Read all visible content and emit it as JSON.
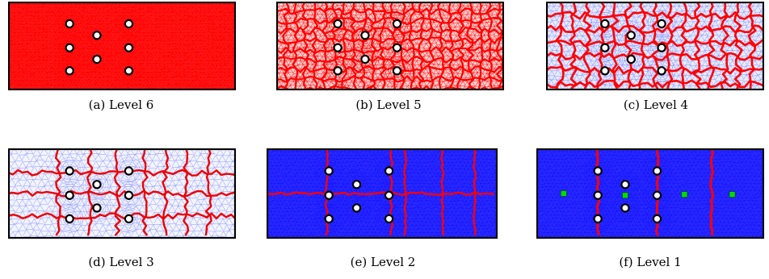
{
  "figure": {
    "panels": [
      {
        "id": "a",
        "caption": "(a)  Level 6",
        "mesh_color": "#ff0000",
        "partition_color": "#ff0000",
        "background": "#ff1a1a"
      },
      {
        "id": "b",
        "caption": "(b)  Level 5",
        "mesh_color": "#ff0000",
        "partition_color": "#ff0000",
        "background": "#ffd0d0"
      },
      {
        "id": "c",
        "caption": "(c)  Level 4",
        "mesh_color": "#7f8cff",
        "partition_color": "#ff0000",
        "background": "#e8ecff"
      },
      {
        "id": "d",
        "caption": "(d)  Level 3",
        "mesh_color": "#8c96ff",
        "partition_color": "#ee0000",
        "background": "#f2f4ff"
      },
      {
        "id": "e",
        "caption": "(e)  Level 2",
        "mesh_color": "#1010ff",
        "partition_color": "#ff0000",
        "background": "#2a2aff"
      },
      {
        "id": "f",
        "caption": "(f)  Level 1",
        "mesh_color": "#1010ff",
        "partition_color": "#ff0000",
        "background": "#2a2aff"
      }
    ],
    "hole_color": "#ffffff",
    "marker_color": "#00dd00"
  }
}
